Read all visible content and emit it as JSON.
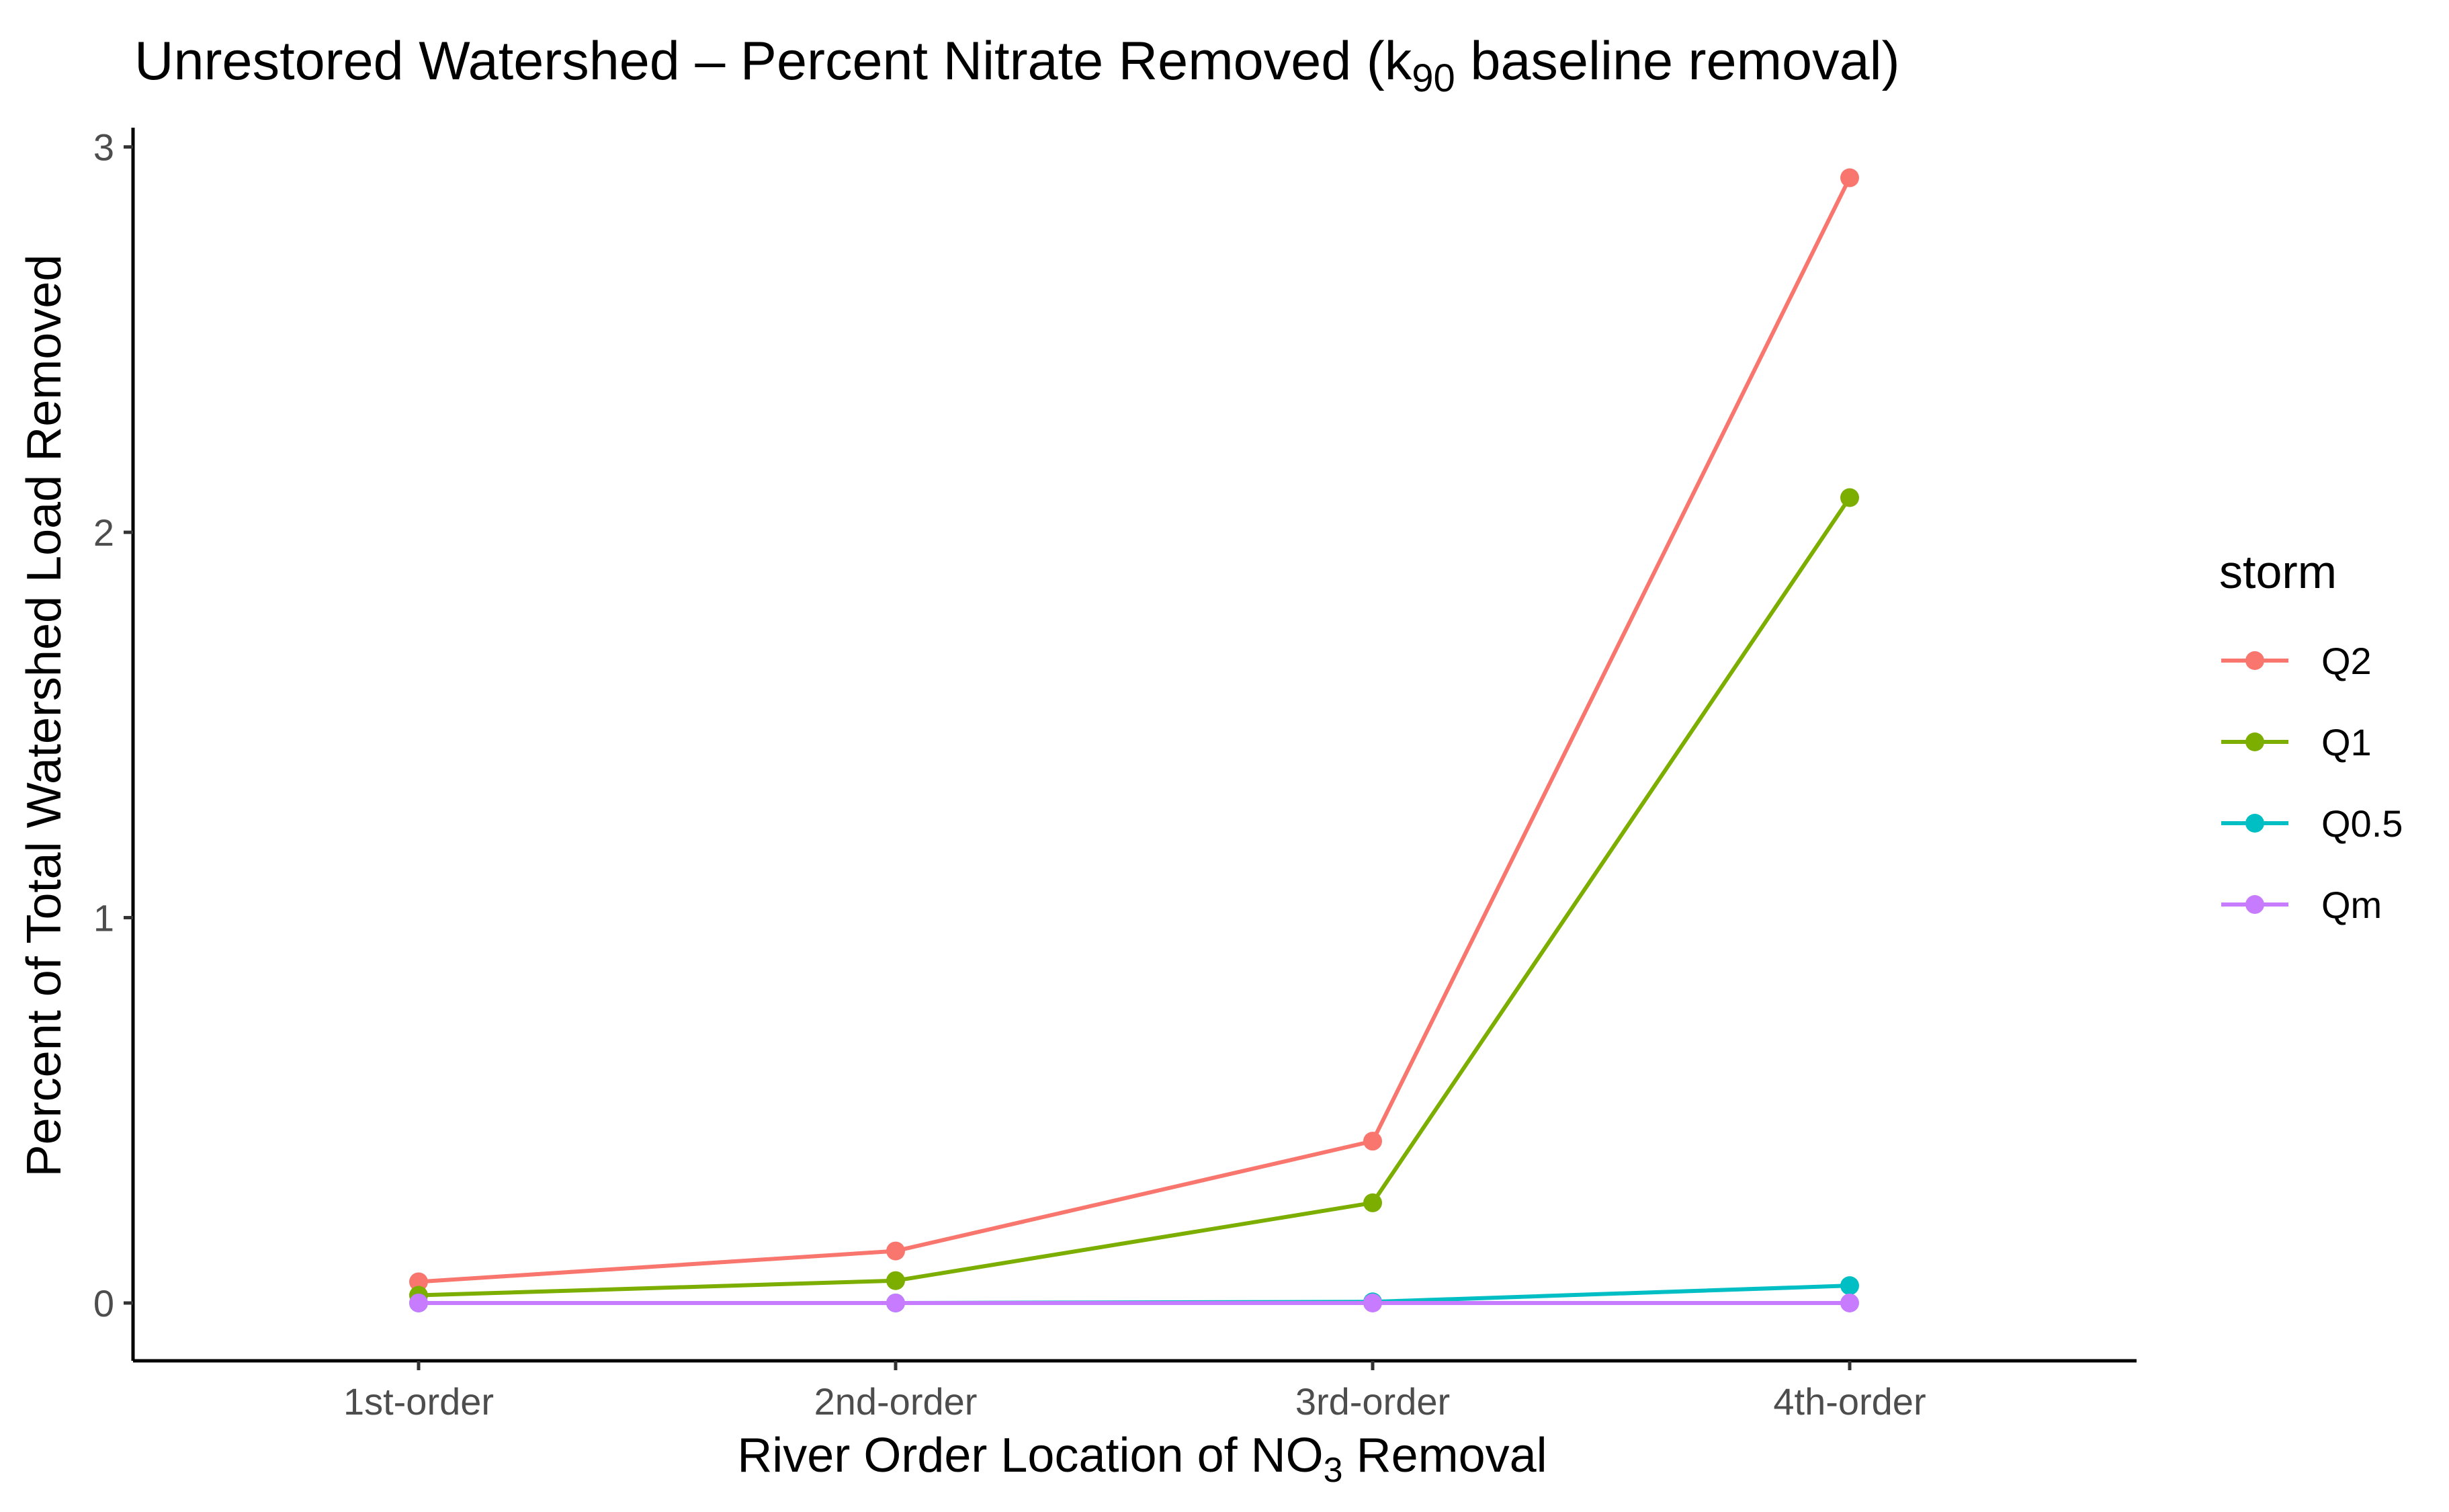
{
  "chart_data": {
    "type": "line",
    "title": {
      "before_sub": "Unrestored Watershed –  Percent Nitrate Removed (k",
      "sub": "90",
      "after_sub": " baseline removal)"
    },
    "xlabel": {
      "before_sub": "River Order Location of NO",
      "sub": "3",
      "after_sub": " Removal"
    },
    "ylabel": "Percent of Total Watershed Load Removed",
    "categories": [
      "1st-order",
      "2nd-order",
      "3rd-order",
      "4th-order"
    ],
    "ylim": [
      -0.15,
      3.05
    ],
    "yticks": [
      0,
      1,
      2,
      3
    ],
    "grid": false,
    "legend": {
      "title": "storm",
      "position": "right"
    },
    "series": [
      {
        "name": "Q2",
        "color": "#F8766D",
        "values": [
          0.055,
          0.135,
          0.42,
          2.92
        ]
      },
      {
        "name": "Q1",
        "color": "#7CAE00",
        "values": [
          0.02,
          0.058,
          0.26,
          2.09
        ]
      },
      {
        "name": "Q0.5",
        "color": "#00BFC4",
        "values": [
          0.0,
          0.0,
          0.003,
          0.045
        ]
      },
      {
        "name": "Qm",
        "color": "#C77CFF",
        "values": [
          0.0,
          0.0,
          0.0,
          0.0
        ]
      }
    ]
  }
}
